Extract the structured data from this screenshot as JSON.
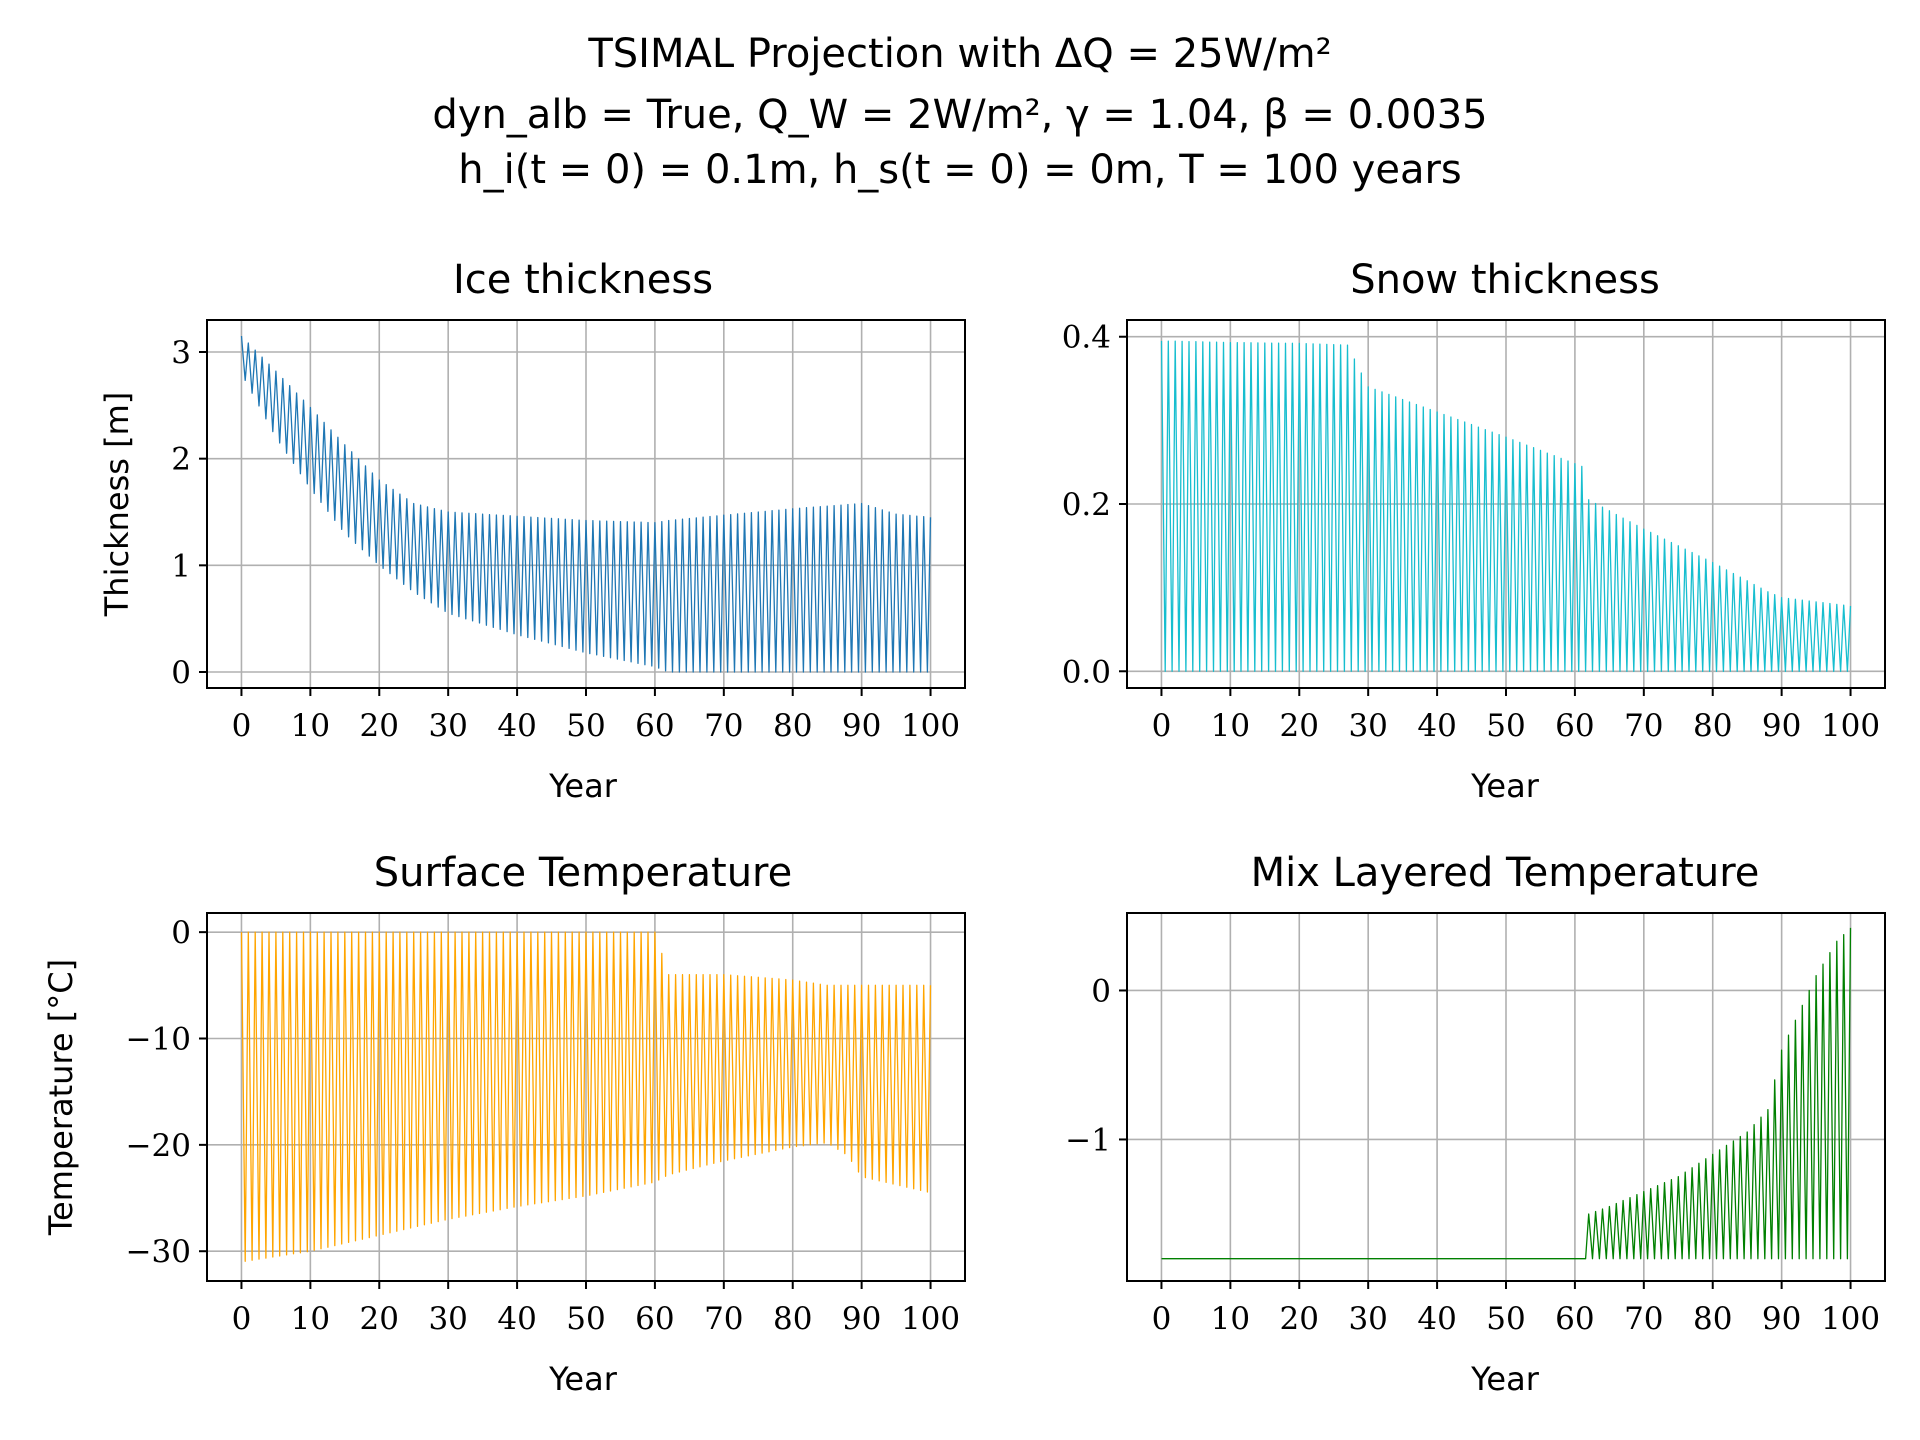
{
  "figure": {
    "title_lines": [
      "TSIMAL Projection with ΔQ = 25W/m²",
      "dyn_alb = True, Q_W = 2W/m², γ = 1.04, β = 0.0035",
      "h_i(t = 0) = 0.1m, h_s(t = 0) = 0m, T = 100 years"
    ]
  },
  "chart_data": [
    {
      "type": "line",
      "title": "Ice thickness",
      "xlabel": "Year",
      "ylabel": "Thickness [m]",
      "color": "#1f77b4",
      "xlim": [
        -5,
        105
      ],
      "ylim": [
        -0.15,
        3.3
      ],
      "xticks": [
        0,
        10,
        20,
        30,
        40,
        50,
        60,
        70,
        80,
        90,
        100
      ],
      "yticks": [
        0,
        1,
        2,
        3
      ],
      "ytick_labels": [
        "0",
        "1",
        "2",
        "3"
      ],
      "grid": true,
      "series": [
        {
          "cycle": "yearly",
          "x": [
            0,
            5,
            10,
            15,
            20,
            25,
            30,
            40,
            50,
            60,
            62,
            70,
            80,
            90,
            95,
            100
          ],
          "annual_max": [
            3.15,
            2.82,
            2.48,
            2.13,
            1.8,
            1.58,
            1.5,
            1.46,
            1.42,
            1.4,
            1.42,
            1.47,
            1.53,
            1.58,
            1.48,
            1.45
          ],
          "annual_min": [
            2.8,
            2.2,
            1.72,
            1.3,
            1.0,
            0.75,
            0.55,
            0.35,
            0.18,
            0.05,
            0.0,
            0.0,
            0.0,
            0.0,
            0.0,
            0.0
          ]
        }
      ]
    },
    {
      "type": "line",
      "title": "Snow thickness",
      "xlabel": "Year",
      "ylabel": "",
      "color": "#17becf",
      "xlim": [
        -5,
        105
      ],
      "ylim": [
        -0.02,
        0.42
      ],
      "xticks": [
        0,
        10,
        20,
        30,
        40,
        50,
        60,
        70,
        80,
        90,
        100
      ],
      "yticks": [
        0.0,
        0.2,
        0.4
      ],
      "ytick_labels": [
        "0.0",
        "0.2",
        "0.4"
      ],
      "grid": true,
      "series": [
        {
          "cycle": "yearly",
          "x": [
            0,
            10,
            20,
            27,
            30,
            40,
            50,
            61,
            62,
            70,
            80,
            88,
            90,
            100
          ],
          "annual_max": [
            0.395,
            0.393,
            0.392,
            0.39,
            0.34,
            0.31,
            0.28,
            0.245,
            0.205,
            0.17,
            0.13,
            0.095,
            0.088,
            0.078
          ],
          "annual_min": [
            0,
            0,
            0,
            0,
            0,
            0,
            0,
            0,
            0,
            0,
            0,
            0,
            0,
            0
          ]
        }
      ]
    },
    {
      "type": "line",
      "title": "Surface Temperature",
      "xlabel": "Year",
      "ylabel": "Temperature [°C]",
      "color": "#ffa500",
      "xlim": [
        -5,
        105
      ],
      "ylim": [
        -32.8,
        1.8
      ],
      "xticks": [
        0,
        10,
        20,
        30,
        40,
        50,
        60,
        70,
        80,
        90,
        100
      ],
      "yticks": [
        -30,
        -20,
        -10,
        0
      ],
      "ytick_labels": [
        "−30",
        "−20",
        "−10",
        "0"
      ],
      "grid": true,
      "series": [
        {
          "cycle": "yearly",
          "x": [
            0,
            10,
            20,
            30,
            40,
            50,
            60,
            62,
            70,
            80,
            85,
            88,
            90,
            100
          ],
          "annual_max": [
            0,
            0,
            0,
            0,
            0,
            0,
            0,
            -4,
            -4,
            -4.5,
            -5,
            -5,
            -5,
            -5
          ],
          "annual_min": [
            -31,
            -30,
            -28.5,
            -27,
            -25.8,
            -24.8,
            -23.5,
            -22.8,
            -21.5,
            -20.2,
            -19.8,
            -21,
            -23,
            -24.5
          ]
        }
      ]
    },
    {
      "type": "line",
      "title": "Mix Layered Temperature",
      "xlabel": "Year",
      "ylabel": "",
      "color": "#008000",
      "xlim": [
        -5,
        105
      ],
      "ylim": [
        -1.95,
        0.52
      ],
      "xticks": [
        0,
        10,
        20,
        30,
        40,
        50,
        60,
        70,
        80,
        90,
        100
      ],
      "yticks": [
        -1,
        0
      ],
      "ytick_labels": [
        "−1",
        "0"
      ],
      "grid": true,
      "series": [
        {
          "cycle": "yearly",
          "x": [
            0,
            61,
            62,
            65,
            70,
            75,
            80,
            85,
            88,
            90,
            92,
            95,
            98,
            100
          ],
          "annual_max": [
            -1.8,
            -1.8,
            -1.5,
            -1.45,
            -1.35,
            -1.25,
            -1.1,
            -0.95,
            -0.8,
            -0.4,
            -0.2,
            0.1,
            0.33,
            0.42
          ],
          "annual_min": [
            -1.8,
            -1.8,
            -1.8,
            -1.8,
            -1.8,
            -1.8,
            -1.8,
            -1.8,
            -1.8,
            -1.8,
            -1.8,
            -1.8,
            -1.8,
            -1.8
          ]
        }
      ]
    }
  ]
}
